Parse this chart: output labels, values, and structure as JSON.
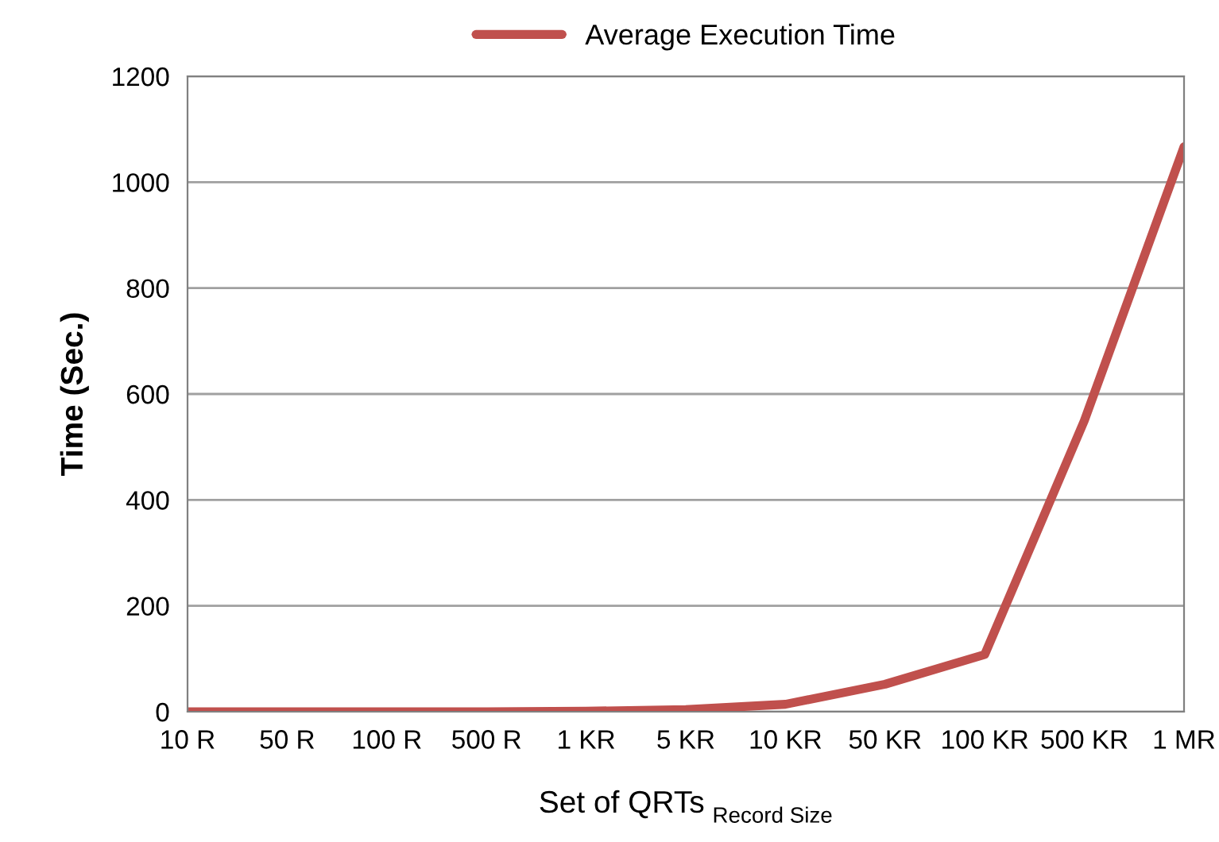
{
  "chart_data": {
    "type": "line",
    "xlabel": "Set of QRTs $_{Record Size}$",
    "ylabel": "Time (Sec.)",
    "categories": [
      "10 R",
      "50 R",
      "100 R",
      "500 R",
      "1 KR",
      "5 KR",
      "10 KR",
      "50 KR",
      "100 KR",
      "500 KR",
      "1 MR"
    ],
    "series": [
      {
        "name": "Average Execution Time",
        "color": "#c0504d",
        "values": [
          0,
          0,
          0,
          0,
          1,
          4,
          14,
          52,
          108,
          550,
          1067
        ]
      }
    ],
    "ylim": [
      0,
      1200
    ],
    "yticks": [
      0,
      200,
      400,
      600,
      800,
      1000,
      1200
    ],
    "grid": "y",
    "legend": "top",
    "marker": "none",
    "line_style": "solid"
  }
}
